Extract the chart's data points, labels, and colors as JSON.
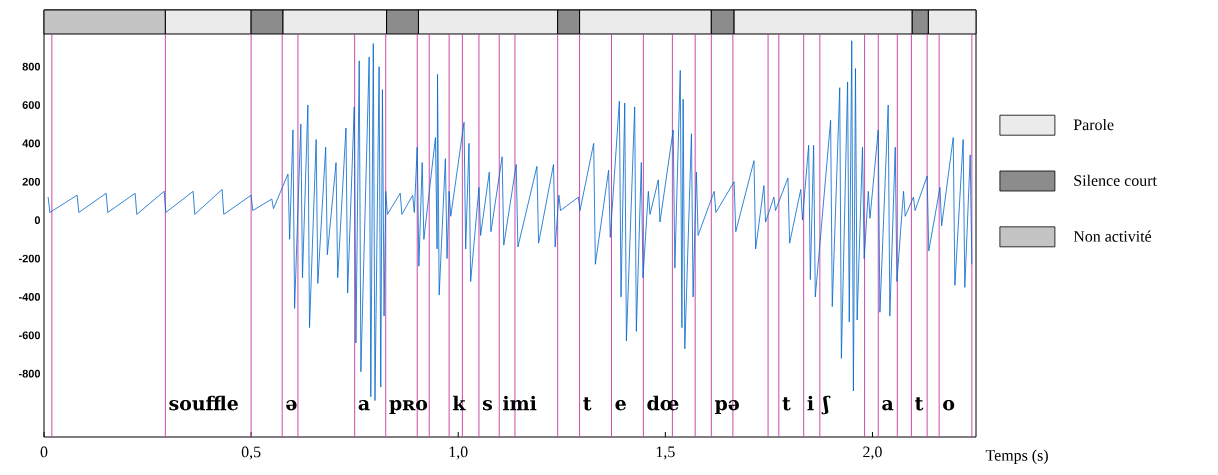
{
  "chart_data": {
    "legend": "right",
    "bands": [
      {
        "axis": "x",
        "from": 0,
        "to": 0.293,
        "label": "Non activité",
        "color": "#c4c4c4"
      },
      {
        "axis": "x",
        "from": 0.293,
        "to": 0.5,
        "color": "#ebebeb"
      },
      {
        "axis": "x",
        "from": 0.5,
        "to": 0.577,
        "color": "#8c8c8c"
      },
      {
        "axis": "x",
        "from": 0.577,
        "to": 0.827,
        "color": "#ebebeb"
      },
      {
        "axis": "x",
        "from": 0.827,
        "to": 0.904,
        "color": "#8c8c8c"
      },
      {
        "axis": "x",
        "from": 0.904,
        "to": 1.24,
        "color": "#ebebeb"
      },
      {
        "axis": "x",
        "from": 1.24,
        "to": 1.293,
        "color": "#8c8c8c"
      },
      {
        "axis": "x",
        "from": 1.293,
        "to": 1.611,
        "color": "#ebebeb"
      },
      {
        "axis": "x",
        "from": 1.611,
        "to": 1.666,
        "color": "#8c8c8c"
      },
      {
        "axis": "x",
        "from": 1.666,
        "to": 2.096,
        "color": "#ebebeb"
      },
      {
        "axis": "x",
        "from": 2.096,
        "to": 2.135,
        "label": "Silence court",
        "color": "#8c8c8c"
      },
      {
        "axis": "x",
        "from": 2.135,
        "to": 2.25,
        "label": "Parole",
        "color": "#ebebeb"
      }
    ],
    "type": "line",
    "xlabel": "Temps (s)",
    "xlim": [
      0,
      2.25
    ],
    "ylim": [
      -1130,
      1095
    ],
    "xticks": [
      0,
      {
        "value": 0.5,
        "label": "0,5"
      },
      {
        "value": 1,
        "label": "1,0"
      },
      {
        "value": 1.5,
        "label": "1,5"
      },
      {
        "value": 2,
        "label": "2,0"
      }
    ],
    "yticks": [
      -800,
      -600,
      -400,
      -200,
      0,
      200,
      400,
      600,
      800
    ],
    "color": "#0066cc",
    "x": [
      0.01,
      0.014,
      0.08,
      0.084,
      0.15,
      0.154,
      0.22,
      0.224,
      0.29,
      0.294,
      0.36,
      0.364,
      0.43,
      0.434,
      0.5,
      0.504,
      0.55,
      0.554,
      0.589,
      0.593,
      0.601,
      0.605,
      0.62,
      0.624,
      0.637,
      0.641,
      0.657,
      0.661,
      0.68,
      0.684,
      0.705,
      0.709,
      0.729,
      0.733,
      0.749,
      0.753,
      0.761,
      0.765,
      0.785,
      0.789,
      0.795,
      0.799,
      0.809,
      0.813,
      0.817,
      0.821,
      0.825,
      0.829,
      0.86,
      0.864,
      0.89,
      0.894,
      0.901,
      0.905,
      0.913,
      0.917,
      0.945,
      0.949,
      0.95,
      0.954,
      0.969,
      0.973,
      0.978,
      0.982,
      1.014,
      1.018,
      1.026,
      1.03,
      1.05,
      1.054,
      1.075,
      1.079,
      1.106,
      1.11,
      1.14,
      1.144,
      1.19,
      1.194,
      1.23,
      1.234,
      1.243,
      1.247,
      1.29,
      1.294,
      1.327,
      1.331,
      1.363,
      1.367,
      1.389,
      1.393,
      1.402,
      1.406,
      1.426,
      1.43,
      1.442,
      1.446,
      1.459,
      1.463,
      1.483,
      1.487,
      1.519,
      1.523,
      1.536,
      1.54,
      1.543,
      1.547,
      1.563,
      1.567,
      1.575,
      1.579,
      1.618,
      1.622,
      1.666,
      1.67,
      1.714,
      1.718,
      1.738,
      1.742,
      1.762,
      1.766,
      1.796,
      1.8,
      1.827,
      1.831,
      1.846,
      1.85,
      1.858,
      1.862,
      1.899,
      1.903,
      1.921,
      1.925,
      1.94,
      1.944,
      1.95,
      1.954,
      1.959,
      1.963,
      1.976,
      1.98,
      1.99,
      1.994,
      2.014,
      2.018,
      2.038,
      2.042,
      2.055,
      2.059,
      2.075,
      2.079,
      2.099,
      2.103,
      2.132,
      2.136,
      2.163,
      2.167,
      2.195,
      2.199,
      2.219,
      2.223,
      2.236,
      2.24
    ],
    "values": [
      120,
      40,
      130,
      40,
      140,
      40,
      140,
      30,
      150,
      40,
      150,
      30,
      160,
      30,
      130,
      50,
      110,
      60,
      240,
      -100,
      470,
      -460,
      500,
      -300,
      600,
      -560,
      420,
      -330,
      380,
      -180,
      300,
      -300,
      480,
      -380,
      590,
      -640,
      830,
      -790,
      850,
      -920,
      920,
      -940,
      800,
      -870,
      680,
      -500,
      150,
      30,
      140,
      30,
      130,
      40,
      380,
      -240,
      300,
      -100,
      430,
      -150,
      760,
      -390,
      320,
      -200,
      150,
      20,
      510,
      -150,
      400,
      -320,
      170,
      -80,
      250,
      -60,
      330,
      -130,
      290,
      -140,
      280,
      -120,
      290,
      -140,
      130,
      50,
      120,
      50,
      400,
      -230,
      260,
      -90,
      620,
      -400,
      610,
      -630,
      590,
      -580,
      300,
      -300,
      150,
      30,
      210,
      -10,
      470,
      -250,
      780,
      -560,
      630,
      -670,
      450,
      -400,
      250,
      -80,
      150,
      40,
      200,
      -60,
      310,
      -150,
      180,
      -10,
      120,
      50,
      220,
      -120,
      160,
      0,
      390,
      -310,
      390,
      -400,
      520,
      -450,
      690,
      -720,
      720,
      -530,
      935,
      -890,
      790,
      -520,
      380,
      -200,
      150,
      10,
      470,
      -480,
      600,
      -500,
      380,
      -320,
      150,
      20,
      120,
      50,
      230,
      -160,
      170,
      -30,
      430,
      -340,
      420,
      -350,
      340,
      -230
    ],
    "ref_lines": [
      {
        "axis": "x",
        "value": 0.019,
        "color": "#c8379f"
      },
      {
        "axis": "x",
        "value": 0.293,
        "color": "#c8379f"
      },
      {
        "axis": "x",
        "value": 0.5,
        "color": "#c8379f"
      },
      {
        "axis": "x",
        "value": 0.575,
        "color": "#c8379f"
      },
      {
        "axis": "x",
        "value": 0.613,
        "color": "#c8379f"
      },
      {
        "axis": "x",
        "value": 0.75,
        "color": "#c8379f"
      },
      {
        "axis": "x",
        "value": 0.825,
        "color": "#c8379f"
      },
      {
        "axis": "x",
        "value": 0.901,
        "color": "#c8379f"
      },
      {
        "axis": "x",
        "value": 0.93,
        "color": "#c8379f"
      },
      {
        "axis": "x",
        "value": 0.978,
        "color": "#c8379f"
      },
      {
        "axis": "x",
        "value": 1.01,
        "color": "#c8379f"
      },
      {
        "axis": "x",
        "value": 1.05,
        "color": "#c8379f"
      },
      {
        "axis": "x",
        "value": 1.099,
        "color": "#c8379f"
      },
      {
        "axis": "x",
        "value": 1.137,
        "color": "#c8379f"
      },
      {
        "axis": "x",
        "value": 1.24,
        "color": "#c8379f"
      },
      {
        "axis": "x",
        "value": 1.293,
        "color": "#c8379f"
      },
      {
        "axis": "x",
        "value": 1.37,
        "color": "#c8379f"
      },
      {
        "axis": "x",
        "value": 1.447,
        "color": "#c8379f"
      },
      {
        "axis": "x",
        "value": 1.517,
        "color": "#c8379f"
      },
      {
        "axis": "x",
        "value": 1.572,
        "color": "#c8379f"
      },
      {
        "axis": "x",
        "value": 1.611,
        "color": "#c8379f"
      },
      {
        "axis": "x",
        "value": 1.663,
        "color": "#c8379f"
      },
      {
        "axis": "x",
        "value": 1.748,
        "color": "#c8379f"
      },
      {
        "axis": "x",
        "value": 1.774,
        "color": "#c8379f"
      },
      {
        "axis": "x",
        "value": 1.834,
        "color": "#c8379f"
      },
      {
        "axis": "x",
        "value": 1.873,
        "color": "#c8379f"
      },
      {
        "axis": "x",
        "value": 1.981,
        "color": "#c8379f"
      },
      {
        "axis": "x",
        "value": 2.014,
        "color": "#c8379f"
      },
      {
        "axis": "x",
        "value": 2.06,
        "color": "#c8379f"
      },
      {
        "axis": "x",
        "value": 2.094,
        "color": "#c8379f"
      },
      {
        "axis": "x",
        "value": 2.132,
        "color": "#c8379f"
      },
      {
        "axis": "x",
        "value": 2.161,
        "color": "#c8379f"
      },
      {
        "axis": "x",
        "value": 2.24,
        "color": "#c8379f"
      }
    ],
    "annotations": [
      {
        "text": "souffle",
        "x": 0.293,
        "y": -990
      },
      {
        "text": "ə",
        "x": 0.575,
        "y": -990
      },
      {
        "text": "a",
        "x": 0.75,
        "y": -990
      },
      {
        "text": "pʀo",
        "x": 0.825,
        "y": -990
      },
      {
        "text": "k",
        "x": 0.978,
        "y": -990
      },
      {
        "text": "s",
        "x": 1.05,
        "y": -990
      },
      {
        "text": "imi",
        "x": 1.099,
        "y": -990
      },
      {
        "text": "t",
        "x": 1.293,
        "y": -990
      },
      {
        "text": "e",
        "x": 1.37,
        "y": -990
      },
      {
        "text": "dœ",
        "x": 1.447,
        "y": -990
      },
      {
        "text": "pə",
        "x": 1.611,
        "y": -990
      },
      {
        "text": "t",
        "x": 1.774,
        "y": -990
      },
      {
        "text": "i",
        "x": 1.834,
        "y": -990
      },
      {
        "text": "ʃ",
        "x": 1.873,
        "y": -990
      },
      {
        "text": "a",
        "x": 2.014,
        "y": -990
      },
      {
        "text": "t",
        "x": 2.094,
        "y": -990
      },
      {
        "text": "o",
        "x": 2.161,
        "y": -990
      }
    ]
  }
}
